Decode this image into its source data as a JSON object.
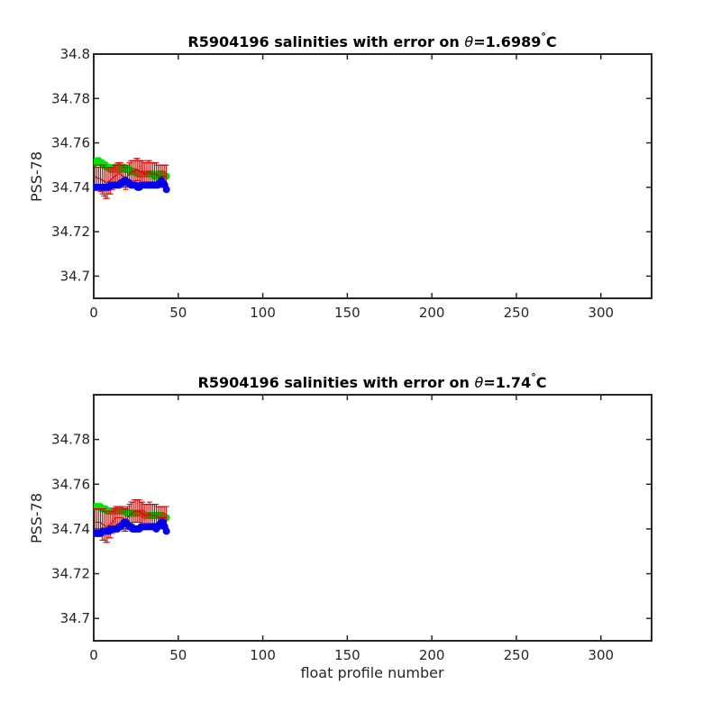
{
  "chart_data": [
    {
      "type": "scatter",
      "title_prefix": "R5904196 salinities with error on ",
      "title_theta": "θ",
      "title_value": "=1.6989",
      "title_deg": "°",
      "title_unit": "C",
      "xlabel": "",
      "ylabel": "PSS-78",
      "xlim": [
        0,
        330
      ],
      "ylim": [
        34.69,
        34.8
      ],
      "xticks": [
        0,
        50,
        100,
        150,
        200,
        250,
        300
      ],
      "yticks": [
        34.7,
        34.72,
        34.74,
        34.76,
        34.78,
        34.8
      ],
      "ytick_labels": [
        "34.7",
        "34.72",
        "34.74",
        "34.76",
        "34.78",
        "34.8"
      ],
      "grid": false,
      "series": [
        {
          "color": "#00e600",
          "x": [
            1,
            2,
            3,
            4,
            5,
            6,
            7,
            8,
            9,
            10,
            11,
            12,
            13,
            14,
            15,
            16,
            17,
            18,
            19,
            20,
            21,
            22,
            23,
            24,
            25,
            26,
            27,
            28,
            29,
            30,
            31,
            32,
            33,
            34,
            35,
            36,
            37,
            38,
            39,
            40,
            41,
            42,
            43
          ],
          "y": [
            34.751,
            34.752,
            34.752,
            34.751,
            34.751,
            34.75,
            34.75,
            34.749,
            34.749,
            34.748,
            34.748,
            34.749,
            34.749,
            34.748,
            34.749,
            34.748,
            34.749,
            34.749,
            34.748,
            34.748,
            34.748,
            34.747,
            34.747,
            34.747,
            34.747,
            34.746,
            34.746,
            34.746,
            34.746,
            34.746,
            34.746,
            34.746,
            34.746,
            34.746,
            34.746,
            34.745,
            34.745,
            34.746,
            34.746,
            34.746,
            34.746,
            34.745,
            34.745
          ]
        },
        {
          "color": "#cc0000",
          "error_bars": true,
          "x": [
            1,
            2,
            3,
            4,
            5,
            6,
            7,
            8,
            9,
            10,
            11,
            12,
            13,
            14,
            15,
            16,
            17,
            18,
            19,
            20,
            21,
            22,
            23,
            24,
            25,
            26,
            27,
            28,
            29,
            30,
            31,
            32,
            33,
            34,
            35,
            36,
            37,
            38,
            39,
            40,
            41,
            42,
            43
          ],
          "y": [
            34.745,
            34.744,
            34.744,
            34.744,
            34.743,
            34.743,
            34.742,
            34.742,
            34.743,
            34.743,
            34.744,
            34.745,
            34.745,
            34.746,
            34.746,
            34.746,
            34.745,
            34.745,
            34.744,
            34.745,
            34.746,
            34.747,
            34.747,
            34.747,
            34.748,
            34.748,
            34.747,
            34.747,
            34.747,
            34.746,
            34.746,
            34.747,
            34.747,
            34.746,
            34.746,
            34.746,
            34.746,
            34.745,
            34.745,
            34.745,
            34.745,
            34.745,
            34.745
          ],
          "err": [
            0.005,
            0.005,
            0.005,
            0.006,
            0.006,
            0.007,
            0.007,
            0.007,
            0.006,
            0.006,
            0.005,
            0.005,
            0.005,
            0.005,
            0.005,
            0.005,
            0.005,
            0.005,
            0.005,
            0.005,
            0.005,
            0.005,
            0.005,
            0.005,
            0.005,
            0.005,
            0.005,
            0.005,
            0.005,
            0.005,
            0.005,
            0.005,
            0.005,
            0.005,
            0.005,
            0.005,
            0.005,
            0.005,
            0.005,
            0.005,
            0.005,
            0.005,
            0.005
          ]
        },
        {
          "color": "#0000ee",
          "x": [
            1,
            2,
            3,
            4,
            5,
            6,
            7,
            8,
            9,
            10,
            11,
            12,
            13,
            14,
            15,
            16,
            17,
            18,
            19,
            20,
            21,
            22,
            23,
            24,
            25,
            26,
            27,
            28,
            29,
            30,
            31,
            32,
            33,
            34,
            35,
            36,
            37,
            38,
            39,
            40,
            41,
            42,
            43
          ],
          "y": [
            34.74,
            34.74,
            34.74,
            34.74,
            34.74,
            34.74,
            34.74,
            34.74,
            34.74,
            34.741,
            34.741,
            34.741,
            34.741,
            34.741,
            34.741,
            34.742,
            34.742,
            34.743,
            34.743,
            34.742,
            34.742,
            34.741,
            34.741,
            34.741,
            34.741,
            34.74,
            34.74,
            34.741,
            34.741,
            34.741,
            34.741,
            34.741,
            34.741,
            34.741,
            34.741,
            34.741,
            34.741,
            34.741,
            34.742,
            34.743,
            34.742,
            34.741,
            34.739
          ]
        }
      ]
    },
    {
      "type": "scatter",
      "title_prefix": "R5904196 salinities with error on ",
      "title_theta": "θ",
      "title_value": "=1.74",
      "title_deg": "°",
      "title_unit": "C",
      "xlabel": "float profile number",
      "ylabel": "PSS-78",
      "xlim": [
        0,
        330
      ],
      "ylim": [
        34.69,
        34.8
      ],
      "xticks": [
        0,
        50,
        100,
        150,
        200,
        250,
        300
      ],
      "yticks": [
        34.7,
        34.72,
        34.74,
        34.76,
        34.78
      ],
      "ytick_labels": [
        "34.7",
        "34.72",
        "34.74",
        "34.76",
        "34.78"
      ],
      "grid": false,
      "series": [
        {
          "color": "#00e600",
          "x": [
            1,
            2,
            3,
            4,
            5,
            6,
            7,
            8,
            9,
            10,
            11,
            12,
            13,
            14,
            15,
            16,
            17,
            18,
            19,
            20,
            21,
            22,
            23,
            24,
            25,
            26,
            27,
            28,
            29,
            30,
            31,
            32,
            33,
            34,
            35,
            36,
            37,
            38,
            39,
            40,
            41,
            42,
            43
          ],
          "y": [
            34.75,
            34.75,
            34.75,
            34.75,
            34.749,
            34.749,
            34.749,
            34.748,
            34.748,
            34.748,
            34.748,
            34.748,
            34.748,
            34.748,
            34.748,
            34.748,
            34.748,
            34.748,
            34.748,
            34.747,
            34.747,
            34.747,
            34.747,
            34.747,
            34.747,
            34.747,
            34.747,
            34.747,
            34.747,
            34.746,
            34.746,
            34.746,
            34.746,
            34.746,
            34.746,
            34.746,
            34.746,
            34.746,
            34.746,
            34.746,
            34.746,
            34.745,
            34.745
          ]
        },
        {
          "color": "#cc0000",
          "error_bars": true,
          "x": [
            1,
            2,
            3,
            4,
            5,
            6,
            7,
            8,
            9,
            10,
            11,
            12,
            13,
            14,
            15,
            16,
            17,
            18,
            19,
            20,
            21,
            22,
            23,
            24,
            25,
            26,
            27,
            28,
            29,
            30,
            31,
            32,
            33,
            34,
            35,
            36,
            37,
            38,
            39,
            40,
            41,
            42,
            43
          ],
          "y": [
            34.743,
            34.743,
            34.743,
            34.743,
            34.742,
            34.742,
            34.741,
            34.741,
            34.742,
            34.742,
            34.743,
            34.744,
            34.745,
            34.745,
            34.745,
            34.745,
            34.745,
            34.744,
            34.744,
            34.745,
            34.746,
            34.747,
            34.747,
            34.748,
            34.748,
            34.748,
            34.748,
            34.747,
            34.747,
            34.746,
            34.746,
            34.746,
            34.747,
            34.746,
            34.746,
            34.746,
            34.746,
            34.745,
            34.745,
            34.745,
            34.745,
            34.745,
            34.745
          ],
          "err": [
            0.006,
            0.006,
            0.006,
            0.006,
            0.007,
            0.007,
            0.007,
            0.007,
            0.006,
            0.006,
            0.005,
            0.005,
            0.005,
            0.005,
            0.005,
            0.005,
            0.005,
            0.005,
            0.005,
            0.005,
            0.005,
            0.005,
            0.005,
            0.005,
            0.005,
            0.005,
            0.005,
            0.005,
            0.005,
            0.005,
            0.005,
            0.005,
            0.005,
            0.005,
            0.005,
            0.005,
            0.005,
            0.005,
            0.005,
            0.005,
            0.005,
            0.005,
            0.005
          ]
        },
        {
          "color": "#0000ee",
          "x": [
            1,
            2,
            3,
            4,
            5,
            6,
            7,
            8,
            9,
            10,
            11,
            12,
            13,
            14,
            15,
            16,
            17,
            18,
            19,
            20,
            21,
            22,
            23,
            24,
            25,
            26,
            27,
            28,
            29,
            30,
            31,
            32,
            33,
            34,
            35,
            36,
            37,
            38,
            39,
            40,
            41,
            42,
            43
          ],
          "y": [
            34.738,
            34.738,
            34.738,
            34.738,
            34.739,
            34.739,
            34.739,
            34.739,
            34.739,
            34.74,
            34.74,
            34.74,
            34.74,
            34.74,
            34.741,
            34.741,
            34.742,
            34.743,
            34.743,
            34.742,
            34.741,
            34.741,
            34.74,
            34.74,
            34.74,
            34.74,
            34.74,
            34.741,
            34.741,
            34.741,
            34.741,
            34.741,
            34.741,
            34.741,
            34.741,
            34.741,
            34.74,
            34.741,
            34.742,
            34.743,
            34.743,
            34.741,
            34.739
          ]
        }
      ]
    }
  ]
}
